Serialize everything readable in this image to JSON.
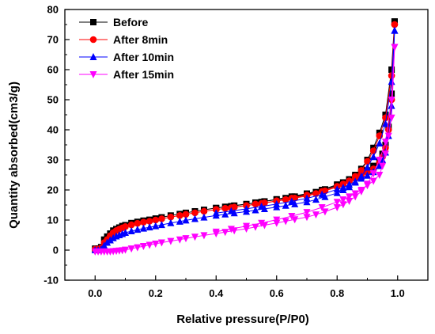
{
  "chart_data": {
    "type": "line",
    "xlabel": "Relative pressure(P/P0)",
    "ylabel": "Quantity absorbed(cm3/g)",
    "xlim": [
      -0.1,
      1.1
    ],
    "ylim": [
      -10,
      80
    ],
    "xticks": [
      0.0,
      0.2,
      0.4,
      0.6,
      0.8,
      1.0
    ],
    "xtick_labels": [
      "0.0",
      "0.2",
      "0.4",
      "0.6",
      "0.8",
      "1.0"
    ],
    "yticks": [
      -10,
      0,
      10,
      20,
      30,
      40,
      50,
      60,
      70,
      80
    ],
    "ytick_labels": [
      "-10",
      "0",
      "10",
      "20",
      "30",
      "40",
      "50",
      "60",
      "70",
      "80"
    ],
    "grid": false,
    "legend_position": "top-left",
    "series": [
      {
        "name": "Before",
        "color": "#000000",
        "marker": "square",
        "adsorption": {
          "x": [
            0.0,
            0.01,
            0.02,
            0.03,
            0.04,
            0.05,
            0.06,
            0.07,
            0.08,
            0.09,
            0.1,
            0.12,
            0.14,
            0.16,
            0.18,
            0.2,
            0.22,
            0.25,
            0.28,
            0.3,
            0.33,
            0.36,
            0.4,
            0.43,
            0.46,
            0.5,
            0.53,
            0.56,
            0.6,
            0.63,
            0.66,
            0.7,
            0.73,
            0.76,
            0.8,
            0.82,
            0.84,
            0.86,
            0.88,
            0.9,
            0.92,
            0.94,
            0.96,
            0.98,
            0.99
          ],
          "y": [
            0.5,
            0.5,
            1.0,
            3.5,
            4.5,
            5.5,
            6.5,
            7.0,
            7.5,
            8.0,
            8.3,
            9.0,
            9.4,
            9.8,
            10.1,
            10.5,
            10.9,
            11.5,
            12.0,
            12.4,
            12.9,
            13.4,
            14.0,
            14.4,
            14.8,
            15.3,
            15.8,
            16.2,
            16.8,
            17.3,
            17.8,
            18.5,
            19.3,
            20.2,
            21.5,
            22.5,
            23.5,
            25.0,
            27.0,
            30.0,
            34.0,
            39.0,
            45.0,
            60.0,
            76.0
          ]
        },
        "desorption": {
          "x": [
            0.99,
            0.98,
            0.97,
            0.96,
            0.95,
            0.94,
            0.92,
            0.9,
            0.88,
            0.86,
            0.84,
            0.82,
            0.8,
            0.75,
            0.7,
            0.65,
            0.6,
            0.55,
            0.5,
            0.45,
            0.4
          ],
          "y": [
            76.0,
            52.0,
            41.0,
            35.0,
            32.0,
            30.0,
            28.0,
            26.5,
            25.5,
            24.5,
            23.5,
            22.5,
            21.8,
            20.0,
            18.8,
            17.8,
            16.9,
            16.0,
            15.3,
            14.6,
            14.0
          ]
        }
      },
      {
        "name": "After 8min",
        "color": "#ff0000",
        "marker": "circle",
        "adsorption": {
          "x": [
            0.0,
            0.01,
            0.02,
            0.03,
            0.04,
            0.05,
            0.06,
            0.07,
            0.08,
            0.09,
            0.1,
            0.12,
            0.14,
            0.16,
            0.18,
            0.2,
            0.22,
            0.25,
            0.28,
            0.3,
            0.33,
            0.36,
            0.4,
            0.43,
            0.46,
            0.5,
            0.53,
            0.56,
            0.6,
            0.63,
            0.66,
            0.7,
            0.73,
            0.76,
            0.8,
            0.82,
            0.84,
            0.86,
            0.88,
            0.9,
            0.92,
            0.94,
            0.96,
            0.98,
            0.99
          ],
          "y": [
            0.3,
            0.3,
            0.7,
            2.5,
            3.5,
            4.8,
            5.8,
            6.5,
            7.0,
            7.4,
            7.8,
            8.4,
            8.9,
            9.3,
            9.6,
            10.0,
            10.4,
            11.0,
            11.5,
            11.9,
            12.4,
            12.9,
            13.5,
            13.9,
            14.3,
            14.8,
            15.3,
            15.7,
            16.3,
            16.8,
            17.3,
            18.0,
            18.8,
            19.7,
            21.0,
            22.0,
            23.0,
            24.5,
            26.5,
            29.5,
            33.0,
            38.0,
            44.0,
            58.0,
            75.0
          ]
        },
        "desorption": {
          "x": [
            0.99,
            0.98,
            0.97,
            0.96,
            0.95,
            0.94,
            0.92,
            0.9,
            0.88,
            0.86,
            0.84,
            0.82,
            0.8,
            0.75,
            0.7,
            0.65,
            0.6,
            0.55,
            0.5,
            0.45,
            0.4
          ],
          "y": [
            75.0,
            50.0,
            40.0,
            34.0,
            31.0,
            29.0,
            27.0,
            25.8,
            24.8,
            23.8,
            22.8,
            21.8,
            21.2,
            19.5,
            18.3,
            17.3,
            16.4,
            15.5,
            14.8,
            14.1,
            13.5
          ]
        }
      },
      {
        "name": "After 10min",
        "color": "#0000ff",
        "marker": "triangle-up",
        "adsorption": {
          "x": [
            0.0,
            0.01,
            0.02,
            0.03,
            0.04,
            0.05,
            0.06,
            0.07,
            0.08,
            0.09,
            0.1,
            0.12,
            0.14,
            0.16,
            0.18,
            0.2,
            0.22,
            0.25,
            0.28,
            0.3,
            0.33,
            0.36,
            0.4,
            0.43,
            0.46,
            0.5,
            0.53,
            0.56,
            0.6,
            0.63,
            0.66,
            0.7,
            0.73,
            0.76,
            0.8,
            0.82,
            0.84,
            0.86,
            0.88,
            0.9,
            0.92,
            0.94,
            0.96,
            0.98,
            0.99
          ],
          "y": [
            0.0,
            0.0,
            0.3,
            1.5,
            2.5,
            3.3,
            4.0,
            4.6,
            5.0,
            5.4,
            5.8,
            6.3,
            6.8,
            7.2,
            7.6,
            8.0,
            8.4,
            9.0,
            9.5,
            9.9,
            10.4,
            10.9,
            11.5,
            11.9,
            12.3,
            12.8,
            13.3,
            13.7,
            14.3,
            14.8,
            15.3,
            16.0,
            16.8,
            17.7,
            19.0,
            20.0,
            21.0,
            22.5,
            24.5,
            27.5,
            31.0,
            35.5,
            42.0,
            56.0,
            73.0
          ]
        },
        "desorption": {
          "x": [
            0.99,
            0.98,
            0.97,
            0.96,
            0.95,
            0.94,
            0.92,
            0.9,
            0.88,
            0.86,
            0.84,
            0.82,
            0.8,
            0.75,
            0.7,
            0.65,
            0.6,
            0.55,
            0.5,
            0.45,
            0.4
          ],
          "y": [
            73.0,
            48.0,
            38.0,
            32.5,
            30.0,
            28.0,
            26.0,
            24.8,
            23.8,
            22.8,
            21.8,
            20.8,
            20.2,
            18.5,
            17.2,
            16.2,
            15.3,
            14.5,
            13.7,
            13.0,
            12.3
          ]
        }
      },
      {
        "name": "After 15min",
        "color": "#ff00ff",
        "marker": "triangle-down",
        "adsorption": {
          "x": [
            0.0,
            0.01,
            0.02,
            0.03,
            0.04,
            0.05,
            0.06,
            0.07,
            0.08,
            0.09,
            0.1,
            0.12,
            0.14,
            0.16,
            0.18,
            0.2,
            0.22,
            0.25,
            0.28,
            0.3,
            0.33,
            0.36,
            0.4,
            0.43,
            0.46,
            0.5,
            0.53,
            0.56,
            0.6,
            0.63,
            0.66,
            0.7,
            0.73,
            0.76,
            0.8,
            0.82,
            0.84,
            0.86,
            0.88,
            0.9,
            0.92,
            0.94,
            0.96,
            0.98,
            0.99
          ],
          "y": [
            -0.5,
            -0.5,
            -0.5,
            -0.5,
            -0.5,
            -0.5,
            -0.4,
            -0.3,
            -0.2,
            -0.1,
            0.1,
            0.5,
            0.9,
            1.3,
            1.7,
            2.1,
            2.5,
            3.0,
            3.5,
            3.9,
            4.4,
            4.9,
            5.5,
            6.0,
            6.5,
            7.1,
            7.7,
            8.3,
            9.0,
            9.6,
            10.2,
            11.0,
            11.8,
            12.8,
            14.2,
            15.2,
            16.3,
            17.8,
            19.5,
            22.0,
            25.5,
            30.0,
            36.0,
            50.0,
            67.5
          ]
        },
        "desorption": {
          "x": [
            0.99,
            0.98,
            0.97,
            0.96,
            0.95,
            0.94,
            0.92,
            0.9,
            0.88,
            0.86,
            0.84,
            0.82,
            0.8,
            0.75,
            0.7,
            0.65,
            0.6,
            0.55,
            0.5,
            0.45,
            0.4
          ],
          "y": [
            67.5,
            44.0,
            38.0,
            32.0,
            28.0,
            25.0,
            23.0,
            21.5,
            20.0,
            18.8,
            17.8,
            16.8,
            16.0,
            14.2,
            12.6,
            11.3,
            10.1,
            9.0,
            8.0,
            7.0,
            6.1
          ]
        }
      }
    ]
  }
}
